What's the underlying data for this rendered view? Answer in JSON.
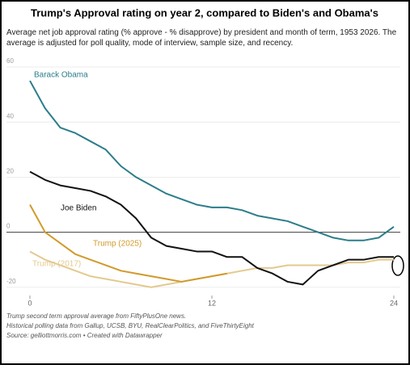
{
  "chart_data": {
    "type": "line",
    "title": "Trump's Approval rating on year 2, compared to Biden's and Obama's",
    "subtitle": "Average net job approval rating (% approve - % disapprove) by president and month of term, 1953 2026. The average is adjusted for poll quality, mode of interview, sample size, and recency.",
    "notes": [
      "Trump second term approval average from FiftyPlusOne news.",
      "Historical polling data from Gallup, UCSB, BYU, RealClearPolitics, and FiveThirtyEight",
      "Source: gelliottmorris.com • Created with Datawrapper"
    ],
    "x": [
      0,
      1,
      2,
      3,
      4,
      5,
      6,
      7,
      8,
      9,
      10,
      11,
      12,
      13,
      14,
      15,
      16,
      17,
      18,
      19,
      20,
      21,
      22,
      23,
      24
    ],
    "series": [
      {
        "name": "Barack Obama",
        "color": "#2b7d8a",
        "values": [
          55,
          45,
          38,
          36,
          33,
          30,
          24,
          20,
          17,
          14,
          12,
          10,
          9,
          9,
          8,
          6,
          5,
          4,
          2,
          0,
          -2,
          -3,
          -3,
          -2,
          2
        ]
      },
      {
        "name": "Joe Biden",
        "color": "#111111",
        "values": [
          22,
          19,
          17,
          16,
          15,
          13,
          10,
          5,
          -2,
          -5,
          -6,
          -7,
          -7,
          -9,
          -9,
          -13,
          -15,
          -18,
          -19,
          -14,
          -12,
          -10,
          -10,
          -9,
          -9
        ]
      },
      {
        "name": "Trump (2025)",
        "color": "#d19a2a",
        "values": [
          10,
          0,
          -4,
          -8,
          -10,
          -12,
          -14,
          -15,
          -16,
          -17,
          -18,
          -17,
          -16,
          -15,
          null,
          null,
          null,
          null,
          null,
          null,
          null,
          null,
          null,
          null,
          null
        ]
      },
      {
        "name": "Trump (2017)",
        "color": "#e3c98e",
        "values": [
          -7,
          -10,
          -12,
          -14,
          -16,
          -17,
          -18,
          -19,
          -20,
          -19,
          -18,
          -17,
          -16,
          -15,
          -14,
          -13,
          -13,
          -12,
          -12,
          -12,
          -12,
          -11,
          -11,
          -10,
          -10
        ]
      }
    ],
    "xlim": [
      0,
      24
    ],
    "xticks": [
      0,
      12,
      24
    ],
    "ylim": [
      -23,
      60
    ],
    "yticks": [
      60,
      40,
      20,
      0,
      -20
    ],
    "grid": true
  }
}
